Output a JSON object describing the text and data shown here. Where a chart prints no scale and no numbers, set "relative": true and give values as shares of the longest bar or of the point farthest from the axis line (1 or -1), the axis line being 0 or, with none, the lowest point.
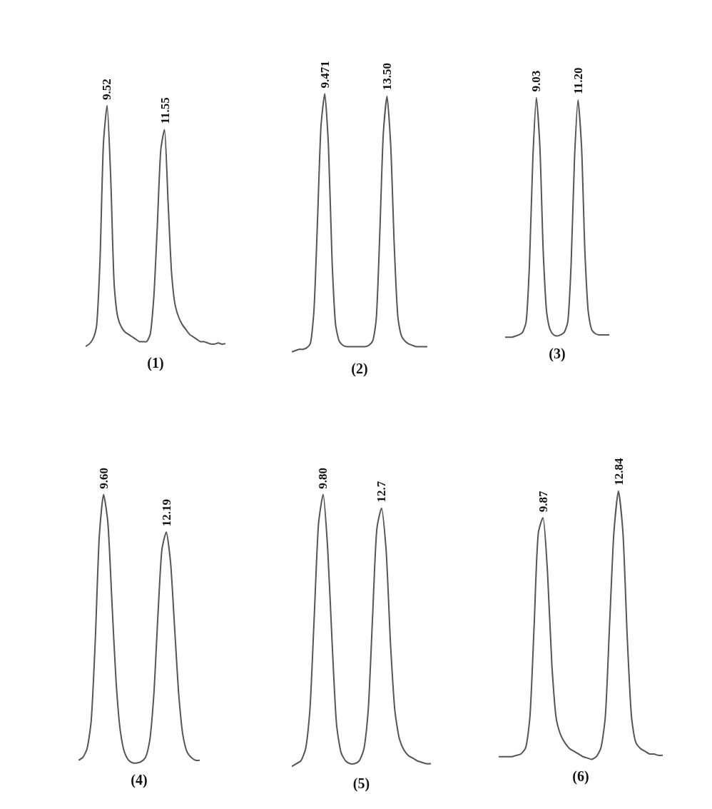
{
  "chart_data": [
    {
      "type": "line",
      "relative": true,
      "xlabel": "(1)",
      "legend": false,
      "grid": false,
      "categories": [
        null,
        null,
        null,
        null,
        null,
        null,
        null,
        null,
        null,
        null,
        null,
        null,
        null,
        null,
        null,
        null,
        null,
        null,
        null,
        null,
        null,
        null,
        null,
        null,
        null,
        null,
        null,
        null,
        null,
        null,
        null,
        null,
        null,
        null,
        null,
        null,
        null,
        null,
        null,
        null
      ],
      "series": [
        {
          "color": "#555555",
          "values": [
            0,
            0.01,
            0.03,
            0.08,
            0.35,
            0.85,
            1,
            0.7,
            0.25,
            0.12,
            0.08,
            0.06,
            0.05,
            0.04,
            0.03,
            0.02,
            0.02,
            0.02,
            0.05,
            0.2,
            0.5,
            0.82,
            0.9,
            0.6,
            0.3,
            0.17,
            0.12,
            0.09,
            0.07,
            0.05,
            0.04,
            0.03,
            0.02,
            0.02,
            0.015,
            0.01,
            0.01,
            0.015,
            0.01,
            0.012
          ]
        }
      ],
      "annotations": [
        "9.52",
        "11.55"
      ]
    },
    {
      "type": "line",
      "relative": true,
      "xlabel": "(2)",
      "legend": false,
      "grid": false,
      "categories": [
        null,
        null,
        null,
        null,
        null,
        null,
        null,
        null,
        null,
        null,
        null,
        null,
        null,
        null,
        null,
        null,
        null,
        null,
        null,
        null,
        null,
        null,
        null,
        null,
        null,
        null,
        null,
        null,
        null,
        null,
        null,
        null,
        null,
        null,
        null,
        null,
        null,
        null
      ],
      "series": [
        {
          "color": "#555555",
          "values": [
            0,
            0.005,
            0.01,
            0.01,
            0.015,
            0.03,
            0.15,
            0.5,
            0.88,
            1,
            0.8,
            0.35,
            0.1,
            0.04,
            0.025,
            0.02,
            0.02,
            0.02,
            0.02,
            0.02,
            0.02,
            0.025,
            0.04,
            0.12,
            0.45,
            0.85,
            0.99,
            0.8,
            0.4,
            0.13,
            0.06,
            0.04,
            0.03,
            0.025,
            0.02,
            0.02,
            0.02,
            0.02
          ]
        }
      ],
      "annotations": [
        "9.471",
        "13.50"
      ]
    },
    {
      "type": "line",
      "relative": true,
      "xlabel": "(3)",
      "legend": false,
      "grid": false,
      "categories": [
        null,
        null,
        null,
        null,
        null,
        null,
        null,
        null,
        null,
        null,
        null,
        null,
        null,
        null,
        null,
        null,
        null,
        null,
        null,
        null,
        null,
        null,
        null,
        null,
        null,
        null,
        null,
        null,
        null,
        null,
        null
      ],
      "series": [
        {
          "color": "#555555",
          "values": [
            0,
            0,
            0,
            0.005,
            0.01,
            0.02,
            0.06,
            0.3,
            0.75,
            1,
            0.8,
            0.35,
            0.1,
            0.03,
            0.01,
            0.005,
            0.01,
            0.02,
            0.06,
            0.3,
            0.75,
            0.99,
            0.8,
            0.35,
            0.1,
            0.03,
            0.015,
            0.01,
            0.01,
            0.01,
            0.01
          ]
        }
      ],
      "annotations": [
        "9.03",
        "11.20"
      ]
    },
    {
      "type": "line",
      "relative": true,
      "xlabel": "(4)",
      "legend": false,
      "grid": false,
      "categories": [
        null,
        null,
        null,
        null,
        null,
        null,
        null,
        null,
        null,
        null,
        null,
        null,
        null,
        null,
        null,
        null,
        null,
        null,
        null,
        null,
        null,
        null,
        null,
        null,
        null,
        null,
        null,
        null,
        null,
        null
      ],
      "series": [
        {
          "color": "#555555",
          "values": [
            0.01,
            0.02,
            0.05,
            0.15,
            0.45,
            0.85,
            1,
            0.9,
            0.6,
            0.3,
            0.12,
            0.04,
            0.01,
            0,
            0,
            0.005,
            0.02,
            0.08,
            0.25,
            0.55,
            0.8,
            0.86,
            0.75,
            0.5,
            0.25,
            0.1,
            0.04,
            0.02,
            0.01,
            0.01
          ]
        }
      ],
      "annotations": [
        "9.60",
        "12.19"
      ]
    },
    {
      "type": "line",
      "relative": true,
      "xlabel": "(5)",
      "legend": false,
      "grid": false,
      "categories": [
        null,
        null,
        null,
        null,
        null,
        null,
        null,
        null,
        null,
        null,
        null,
        null,
        null,
        null,
        null,
        null,
        null,
        null,
        null,
        null,
        null,
        null,
        null,
        null,
        null,
        null,
        null,
        null,
        null,
        null,
        null,
        null
      ],
      "series": [
        {
          "color": "#555555",
          "values": [
            0,
            0.01,
            0.02,
            0.06,
            0.2,
            0.55,
            0.9,
            1,
            0.8,
            0.45,
            0.15,
            0.05,
            0.02,
            0.01,
            0.01,
            0.02,
            0.06,
            0.2,
            0.55,
            0.88,
            0.95,
            0.8,
            0.45,
            0.2,
            0.1,
            0.06,
            0.04,
            0.03,
            0.02,
            0.015,
            0.01,
            0.01
          ]
        }
      ],
      "annotations": [
        "9.80",
        "12.7"
      ]
    },
    {
      "type": "line",
      "relative": true,
      "xlabel": "(6)",
      "legend": false,
      "grid": false,
      "categories": [
        null,
        null,
        null,
        null,
        null,
        null,
        null,
        null,
        null,
        null,
        null,
        null,
        null,
        null,
        null,
        null,
        null,
        null,
        null,
        null,
        null,
        null,
        null,
        null,
        null,
        null,
        null,
        null,
        null,
        null,
        null,
        null,
        null,
        null,
        null,
        null,
        null,
        null
      ],
      "series": [
        {
          "color": "#555555",
          "values": [
            0.01,
            0.01,
            0.01,
            0.01,
            0.015,
            0.02,
            0.04,
            0.15,
            0.5,
            0.85,
            0.9,
            0.7,
            0.35,
            0.15,
            0.09,
            0.06,
            0.04,
            0.03,
            0.02,
            0.01,
            0.005,
            0,
            0.01,
            0.04,
            0.15,
            0.5,
            0.85,
            1,
            0.85,
            0.45,
            0.15,
            0.06,
            0.04,
            0.03,
            0.02,
            0.02,
            0.015,
            0.015
          ]
        }
      ],
      "annotations": [
        "9.87",
        "12.84"
      ]
    }
  ]
}
